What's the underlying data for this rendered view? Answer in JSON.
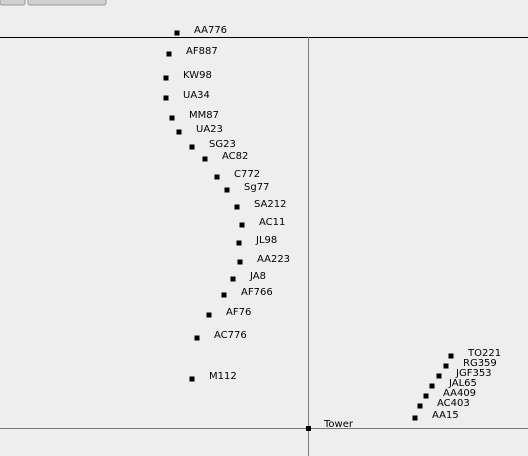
{
  "aircraft": [
    {
      "label": "AA776"
    },
    {
      "label": "AF887"
    },
    {
      "label": "KW98"
    },
    {
      "label": "UA34"
    },
    {
      "label": "MM87"
    },
    {
      "label": "UA23"
    },
    {
      "label": "SG23"
    },
    {
      "label": "AC82"
    },
    {
      "label": "C772"
    },
    {
      "label": "Sg77"
    },
    {
      "label": "SA212"
    },
    {
      "label": "AC11"
    },
    {
      "label": "JL98"
    },
    {
      "label": "AA223"
    },
    {
      "label": "JA8"
    },
    {
      "label": "AF766"
    },
    {
      "label": "AF76"
    },
    {
      "label": "AC776"
    },
    {
      "label": "M112"
    },
    {
      "label": "TO221"
    },
    {
      "label": "RG359"
    },
    {
      "label": "JGF353"
    },
    {
      "label": "JAL65"
    },
    {
      "label": "AA409"
    },
    {
      "label": "AC403"
    },
    {
      "label": "AA15"
    }
  ],
  "tower": {
    "label": "Tower"
  }
}
